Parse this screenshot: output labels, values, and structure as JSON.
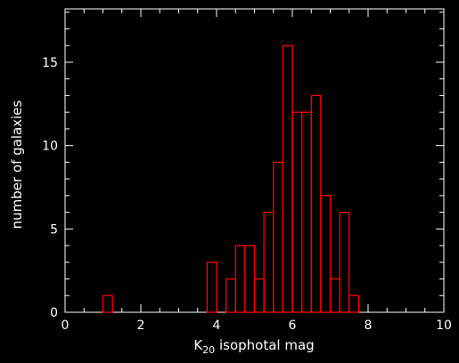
{
  "chart_data": {
    "type": "bar",
    "histogram": true,
    "bin_width": 0.25,
    "x": [
      1.0,
      1.25,
      1.5,
      1.75,
      2.0,
      2.25,
      2.5,
      2.75,
      3.0,
      3.25,
      3.5,
      3.75,
      4.0,
      4.25,
      4.5,
      4.75,
      5.0,
      5.25,
      5.5,
      5.75,
      6.0,
      6.25,
      6.5,
      6.75,
      7.0,
      7.25,
      7.5,
      7.75,
      8.0,
      8.25
    ],
    "values": [
      1,
      0,
      0,
      0,
      0,
      0,
      0,
      0,
      0,
      0,
      0,
      3,
      0,
      2,
      4,
      4,
      2,
      6,
      9,
      16,
      12,
      12,
      13,
      7,
      2,
      6,
      1,
      0,
      0,
      0
    ],
    "xlabel_main": "K",
    "xlabel_sub": "20",
    "xlabel_rest": " isophotal mag",
    "ylabel": "number of galaxies",
    "xlim": [
      0,
      10
    ],
    "ylim": [
      0,
      18.2
    ],
    "x_ticks": [
      "0",
      "2",
      "4",
      "6",
      "8",
      "10"
    ],
    "y_ticks": [
      "0",
      "5",
      "10",
      "15"
    ],
    "grid": false,
    "colors": {
      "background": "#000000",
      "axes": "#ffffff",
      "bars": "#ff0000"
    }
  }
}
